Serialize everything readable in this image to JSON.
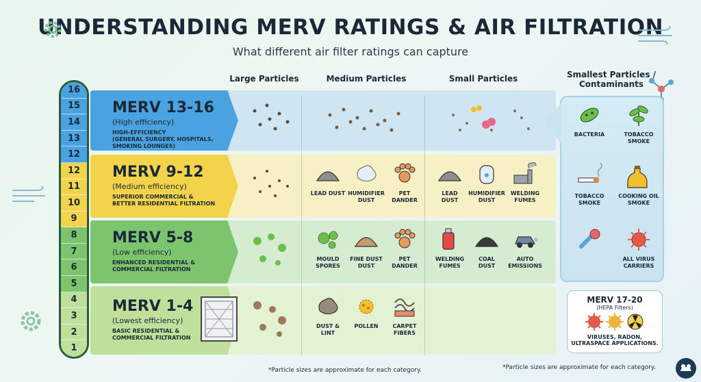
{
  "title": "UNDERSTANDING MERV RATINGS & AIR FILTRATION",
  "subtitle": "What different air filter ratings can capture",
  "scale": [
    {
      "n": "16",
      "color": "#4aa3e0"
    },
    {
      "n": "15",
      "color": "#4aa3e0"
    },
    {
      "n": "14",
      "color": "#4aa3e0"
    },
    {
      "n": "13",
      "color": "#4aa3e0"
    },
    {
      "n": "12",
      "color": "#4aa3e0"
    },
    {
      "n": "12",
      "color": "#f3d34a"
    },
    {
      "n": "11",
      "color": "#f3d34a"
    },
    {
      "n": "10",
      "color": "#f3d34a"
    },
    {
      "n": "9",
      "color": "#f3d34a"
    },
    {
      "n": "8",
      "color": "#7dc46e"
    },
    {
      "n": "7",
      "color": "#7dc46e"
    },
    {
      "n": "6",
      "color": "#7dc46e"
    },
    {
      "n": "5",
      "color": "#7dc46e"
    },
    {
      "n": "4",
      "color": "#bfe09a"
    },
    {
      "n": "3",
      "color": "#bfe09a"
    },
    {
      "n": "2",
      "color": "#bfe09a"
    },
    {
      "n": "1",
      "color": "#bfe09a"
    }
  ],
  "columns": {
    "large": "Large Particles",
    "medium": "Medium Particles",
    "small": "Small Particles",
    "smallest_1": "Smallest Particles /",
    "smallest_2": "Contaminants"
  },
  "tiers": [
    {
      "name": "MERV 13-16",
      "efficiency": "(High efficiency)",
      "desc": [
        "HIGH-EFFICIENCY",
        "(GENERAL SURGERY, HOSPITALS,",
        "SMOKING LOUNGES)"
      ],
      "color": "#4aa3e0",
      "panel": "#cfe6f2"
    },
    {
      "name": "MERV 9-12",
      "efficiency": "(Medium efficiency)",
      "desc": [
        "SUPERIOR COMMERCIAL &",
        "BETTER RESIDENTIAL FILTRATION"
      ],
      "color": "#f3d34a",
      "panel": "#f6f0c4",
      "medium": [
        {
          "l1": "LEAD DUST",
          "l2": ""
        },
        {
          "l1": "HUMIDIFIER",
          "l2": "DUST"
        },
        {
          "l1": "PET",
          "l2": "DANDER"
        }
      ],
      "small": [
        {
          "l1": "LEAD",
          "l2": "DUST"
        },
        {
          "l1": "HUMIDIFIER",
          "l2": "DUST"
        },
        {
          "l1": "WELDING",
          "l2": "FUMES"
        }
      ]
    },
    {
      "name": "MERV 5-8",
      "efficiency": "(Low efficiency)",
      "desc": [
        "ENHANCED RESIDENTIAL &",
        "COMMERCIAL FILTRATION"
      ],
      "color": "#7dc46e",
      "panel": "#d6ecd0",
      "medium": [
        {
          "l1": "MOULD",
          "l2": "SPORES"
        },
        {
          "l1": "FINE DUST",
          "l2": "DUST"
        },
        {
          "l1": "PET",
          "l2": "DANDER"
        }
      ],
      "small": [
        {
          "l1": "WELDING",
          "l2": "FUMES"
        },
        {
          "l1": "COAL",
          "l2": "DUST"
        },
        {
          "l1": "AUTO",
          "l2": "EMISSIONS"
        }
      ]
    },
    {
      "name": "MERV 1-4",
      "efficiency": "(Lowest efficiency)",
      "desc": [
        "BASIC RESIDENTIAL &",
        "COMMERCIAL FILTRATION"
      ],
      "color": "#bfe09a",
      "panel": "#e4f2d4",
      "medium": [
        {
          "l1": "DUST &",
          "l2": "LINT"
        },
        {
          "l1": "POLLEN",
          "l2": ""
        },
        {
          "l1": "CARPET",
          "l2": "FIBERS"
        }
      ]
    }
  ],
  "smallest": [
    {
      "l1": "BACTERIA",
      "l2": ""
    },
    {
      "l1": "TOBACCO",
      "l2": "SMOKE"
    },
    {
      "l1": "TOBACCO",
      "l2": "SMOKE"
    },
    {
      "l1": "COOKING OIL",
      "l2": "SMOKE"
    },
    {
      "l1": "",
      "l2": ""
    },
    {
      "l1": "ALL VIRUS",
      "l2": "CARRIERS"
    }
  ],
  "hepa": {
    "title": "MERV 17-20",
    "sub": "(HEPA Filters)",
    "desc1": "VIRUSES, RADON,",
    "desc2": "ULTRASPACE APPLICATIONS."
  },
  "footnote_left": "*Particle sizes are approximate for each category.",
  "footnote_right": "*Particle sizes are approximate for each category."
}
